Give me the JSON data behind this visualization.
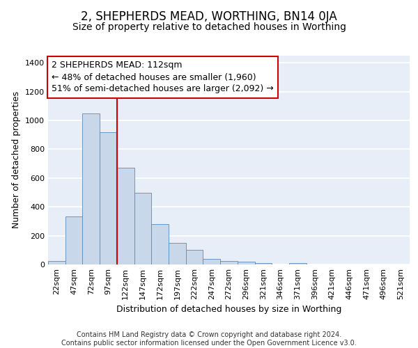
{
  "title": "2, SHEPHERDS MEAD, WORTHING, BN14 0JA",
  "subtitle": "Size of property relative to detached houses in Worthing",
  "xlabel": "Distribution of detached houses by size in Worthing",
  "ylabel": "Number of detached properties",
  "categories": [
    "22sqm",
    "47sqm",
    "72sqm",
    "97sqm",
    "122sqm",
    "147sqm",
    "172sqm",
    "197sqm",
    "222sqm",
    "247sqm",
    "272sqm",
    "296sqm",
    "321sqm",
    "346sqm",
    "371sqm",
    "396sqm",
    "421sqm",
    "446sqm",
    "471sqm",
    "496sqm",
    "521sqm"
  ],
  "values": [
    22,
    335,
    1050,
    920,
    670,
    500,
    278,
    152,
    103,
    38,
    22,
    17,
    12,
    0,
    10,
    0,
    0,
    0,
    0,
    0,
    0
  ],
  "bar_color": "#c8d8ea",
  "bar_edge_color": "#5a8ab8",
  "bar_width": 1.0,
  "vline_color": "#cc0000",
  "annotation_text": "2 SHEPHERDS MEAD: 112sqm\n← 48% of detached houses are smaller (1,960)\n51% of semi-detached houses are larger (2,092) →",
  "annotation_box_color": "#cc0000",
  "ylim": [
    0,
    1450
  ],
  "yticks": [
    0,
    200,
    400,
    600,
    800,
    1000,
    1200,
    1400
  ],
  "background_color": "#e8eef8",
  "grid_color": "#ffffff",
  "footer_text": "Contains HM Land Registry data © Crown copyright and database right 2024.\nContains public sector information licensed under the Open Government Licence v3.0.",
  "title_fontsize": 12,
  "subtitle_fontsize": 10,
  "xlabel_fontsize": 9,
  "ylabel_fontsize": 9,
  "tick_fontsize": 8,
  "annotation_fontsize": 9,
  "footer_fontsize": 7
}
